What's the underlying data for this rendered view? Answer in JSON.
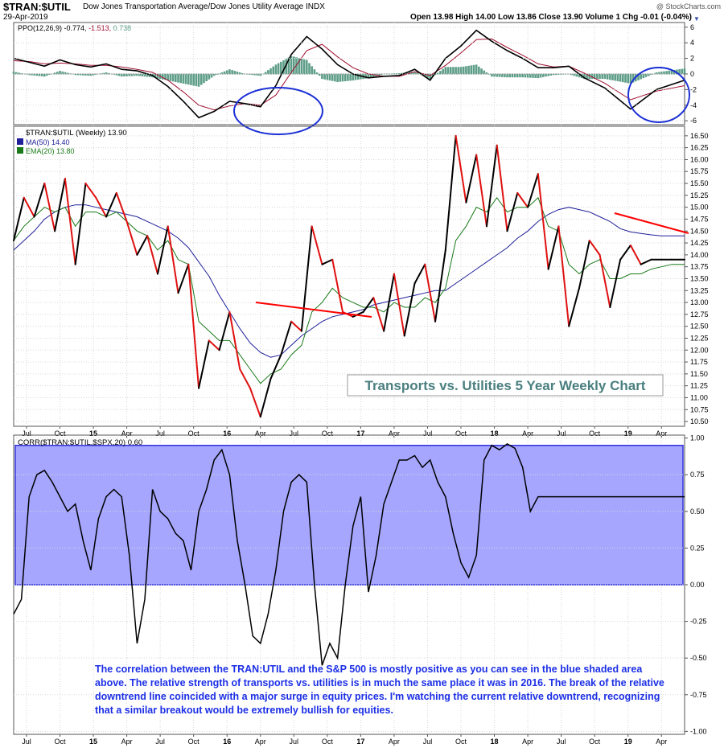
{
  "header": {
    "symbol": "$TRAN:$UTIL",
    "name": "Dow Jones Transportation Average/Dow Jones Utility Average INDX",
    "date": "29-Apr-2019",
    "quote": "Open 13.98  High 14.00  Low 13.86  Close 13.90  Volume 1  Chg -0.01 (-0.04%)",
    "credit": "@ StockCharts.com"
  },
  "colors": {
    "price_up": "#000000",
    "price_down": "#e01010",
    "ma50": "#1f1f99",
    "ema20": "#1a7a1a",
    "ppo_hist": "#5e9e88",
    "ppo_signal": "#a01030",
    "circle": "#1a2fd6",
    "corr_fill": "#a6a6ff",
    "corr_border": "#3333dd",
    "trendline": "#ff0000",
    "annotation": "#1c2fe6"
  },
  "chart_data": [
    {
      "type": "line",
      "panel": "PPO",
      "legend": {
        "prefix": "PPO(12,26,9)",
        "ppo": "-0.774",
        "signal": "-1.513",
        "hist": "0.738"
      },
      "ylim": [
        -6.5,
        6.6
      ],
      "yticks": [
        "6",
        "4",
        "2",
        "0",
        "-2",
        "-4",
        "-6"
      ],
      "x_week": [
        0,
        6,
        12,
        18,
        24,
        30,
        36,
        42,
        48,
        54,
        60,
        66,
        72,
        78,
        84,
        90,
        96,
        102,
        108,
        114,
        120,
        126,
        132,
        138,
        144,
        150,
        156,
        162,
        168,
        174,
        180,
        186,
        192,
        198,
        204,
        210,
        216,
        222,
        230,
        240,
        250,
        261
      ],
      "ppo": [
        2.0,
        1.5,
        1.0,
        1.8,
        1.2,
        0.9,
        1.3,
        0.6,
        0.4,
        -0.2,
        -1.6,
        -3.5,
        -5.6,
        -4.8,
        -3.5,
        -3.8,
        -4.2,
        -1.5,
        2.5,
        4.8,
        3.2,
        1.2,
        0.0,
        -0.5,
        -0.3,
        -0.2,
        0.6,
        -0.8,
        2.0,
        3.6,
        5.6,
        4.2,
        3.0,
        2.0,
        0.8,
        0.8,
        1.0,
        -0.5,
        -1.8,
        -4.5,
        -2.0,
        -0.8
      ],
      "signal": [
        1.7,
        1.6,
        1.3,
        1.4,
        1.3,
        1.1,
        1.1,
        0.9,
        0.6,
        0.2,
        -0.8,
        -2.3,
        -4.0,
        -4.6,
        -4.1,
        -3.8,
        -4.0,
        -2.7,
        0.2,
        3.0,
        3.8,
        2.2,
        0.8,
        0.0,
        -0.3,
        -0.3,
        0.3,
        -0.2,
        1.1,
        2.7,
        4.4,
        4.5,
        3.4,
        2.4,
        1.3,
        0.9,
        1.0,
        0.1,
        -1.2,
        -3.3,
        -2.2,
        -1.5
      ]
    },
    {
      "type": "line",
      "panel": "price",
      "title": "$TRAN:$UTIL (Weekly) 13.90",
      "legend": [
        {
          "name": "MA(50) 14.40"
        },
        {
          "name": "EMA(20) 13.80"
        }
      ],
      "ylim": [
        10.4,
        16.7
      ],
      "yticks": [
        "16.50",
        "16.25",
        "16.00",
        "15.75",
        "15.50",
        "15.25",
        "15.00",
        "14.75",
        "14.50",
        "14.25",
        "14.00",
        "13.75",
        "13.50",
        "13.25",
        "13.00",
        "12.75",
        "12.50",
        "12.25",
        "12.00",
        "11.75",
        "11.50",
        "11.25",
        "11.00",
        "10.75",
        "10.50"
      ],
      "x_week": [
        0,
        4,
        8,
        12,
        16,
        20,
        24,
        28,
        32,
        36,
        40,
        44,
        48,
        52,
        56,
        60,
        64,
        68,
        72,
        76,
        80,
        84,
        88,
        92,
        96,
        100,
        104,
        108,
        112,
        116,
        120,
        124,
        128,
        132,
        136,
        140,
        144,
        148,
        152,
        156,
        160,
        164,
        168,
        172,
        176,
        180,
        184,
        188,
        192,
        196,
        200,
        204,
        208,
        212,
        216,
        220,
        224,
        228,
        232,
        236,
        240,
        244,
        248,
        252,
        256,
        261
      ],
      "close": [
        14.3,
        15.2,
        14.8,
        15.5,
        14.5,
        15.6,
        13.8,
        15.5,
        15.2,
        14.8,
        15.3,
        14.7,
        14.0,
        14.4,
        13.6,
        14.6,
        13.2,
        13.8,
        11.2,
        12.2,
        12.0,
        12.8,
        11.6,
        11.2,
        10.6,
        11.4,
        11.9,
        12.6,
        12.4,
        14.6,
        13.8,
        13.9,
        12.8,
        12.7,
        12.8,
        13.1,
        12.4,
        13.6,
        12.3,
        13.4,
        13.8,
        12.6,
        14.1,
        16.5,
        15.1,
        16.1,
        14.6,
        16.3,
        14.5,
        15.3,
        15.0,
        15.7,
        13.7,
        14.6,
        12.5,
        13.3,
        14.3,
        14.0,
        12.9,
        13.9,
        14.2,
        13.8,
        13.9,
        13.9,
        13.9,
        13.9
      ],
      "ma50": [
        14.1,
        14.3,
        14.5,
        14.75,
        14.9,
        15.0,
        15.05,
        15.05,
        15.0,
        14.95,
        14.9,
        14.85,
        14.8,
        14.7,
        14.6,
        14.5,
        14.35,
        14.15,
        13.85,
        13.55,
        13.15,
        12.8,
        12.45,
        12.15,
        11.95,
        11.85,
        11.9,
        12.1,
        12.3,
        12.45,
        12.6,
        12.7,
        12.75,
        12.8,
        12.85,
        12.95,
        13.0,
        13.05,
        13.1,
        13.15,
        13.2,
        13.25,
        13.25,
        13.4,
        13.55,
        13.7,
        13.85,
        14.0,
        14.15,
        14.35,
        14.5,
        14.7,
        14.85,
        14.95,
        15.0,
        14.95,
        14.9,
        14.8,
        14.7,
        14.55,
        14.48,
        14.45,
        14.42,
        14.4,
        14.4,
        14.4
      ],
      "ema20": [
        14.3,
        14.6,
        14.8,
        15.0,
        14.9,
        15.0,
        14.6,
        14.9,
        14.9,
        14.8,
        14.9,
        14.7,
        14.5,
        14.4,
        14.1,
        14.3,
        13.9,
        13.8,
        12.6,
        12.4,
        12.2,
        12.2,
        11.9,
        11.6,
        11.3,
        11.5,
        11.6,
        11.9,
        12.1,
        12.8,
        13.0,
        13.3,
        13.1,
        13.0,
        12.9,
        12.9,
        12.8,
        13.0,
        12.9,
        12.9,
        13.1,
        13.0,
        13.3,
        14.3,
        14.6,
        15.0,
        14.9,
        15.2,
        14.9,
        15.0,
        15.0,
        15.2,
        14.6,
        14.5,
        13.8,
        13.6,
        13.8,
        13.9,
        13.5,
        13.5,
        13.6,
        13.6,
        13.7,
        13.75,
        13.8,
        13.8
      ]
    },
    {
      "type": "line",
      "panel": "correlation",
      "title": "CORR($TRAN:$UTIL,$SPX,20) 0.60",
      "ylim": [
        -1.02,
        1.02
      ],
      "yticks": [
        "1.00",
        "0.75",
        "0.50",
        "0.25",
        "0.00",
        "-0.25",
        "-0.50",
        "-0.75",
        "-1.00"
      ],
      "shaded_band": [
        0,
        0.95
      ],
      "x_week": [
        0,
        3,
        6,
        9,
        12,
        15,
        18,
        21,
        24,
        27,
        30,
        33,
        36,
        39,
        42,
        45,
        48,
        51,
        54,
        57,
        60,
        63,
        66,
        69,
        72,
        75,
        78,
        81,
        84,
        87,
        90,
        93,
        96,
        99,
        102,
        105,
        108,
        111,
        114,
        117,
        120,
        123,
        126,
        129,
        132,
        135,
        138,
        141,
        144,
        147,
        150,
        153,
        156,
        159,
        162,
        165,
        168,
        171,
        174,
        177,
        180,
        183,
        186,
        189,
        192,
        195,
        198,
        201,
        204,
        207,
        210,
        213,
        216,
        219,
        222,
        225,
        228,
        231,
        234,
        237,
        240,
        243,
        246,
        249,
        252,
        255,
        258,
        261
      ],
      "values": [
        -0.2,
        -0.1,
        0.6,
        0.75,
        0.78,
        0.7,
        0.6,
        0.5,
        0.55,
        0.3,
        0.1,
        0.45,
        0.6,
        0.65,
        0.6,
        0.2,
        -0.4,
        -0.1,
        0.65,
        0.5,
        0.45,
        0.35,
        0.3,
        0.1,
        0.5,
        0.65,
        0.85,
        0.92,
        0.75,
        0.3,
        0.0,
        -0.35,
        -0.4,
        -0.2,
        0.1,
        0.5,
        0.7,
        0.75,
        0.7,
        0.0,
        -0.55,
        -0.4,
        -0.5,
        0.0,
        0.4,
        0.6,
        -0.05,
        0.2,
        0.55,
        0.7,
        0.85,
        0.85,
        0.88,
        0.8,
        0.85,
        0.7,
        0.6,
        0.35,
        0.15,
        0.05,
        0.2,
        0.85,
        0.95,
        0.92,
        0.96,
        0.93,
        0.8,
        0.5,
        0.6,
        0.6,
        0.6,
        0.6,
        0.6,
        0.6,
        0.6,
        0.6,
        0.6,
        0.6,
        0.6,
        0.6,
        0.6,
        0.6,
        0.6,
        0.6,
        0.6,
        0.6,
        0.6,
        0.6
      ]
    }
  ],
  "xaxis": {
    "labels": [
      "Jul",
      "Oct",
      "15",
      "Apr",
      "Jul",
      "Oct",
      "16",
      "Apr",
      "Jul",
      "Oct",
      "17",
      "Apr",
      "Jul",
      "Oct",
      "18",
      "Apr",
      "Jul",
      "Oct",
      "19",
      "Apr"
    ],
    "bold": [
      "15",
      "16",
      "17",
      "18",
      "19"
    ]
  },
  "chart_title_box": "Transports vs. Utilities 5 Year Weekly Chart",
  "annotation": "The correlation between the TRAN:UTIL and the S&P 500 is mostly positive as you can see in the blue shaded area above.  The relative strength of transports vs. utilities is in much the same place it was in 2016.  The break of the relative downtrend line coincided with a major surge in equity prices.  I'm watching the current relative downtrend, recognizing that a similar breakout would be extremely bullish for equities."
}
